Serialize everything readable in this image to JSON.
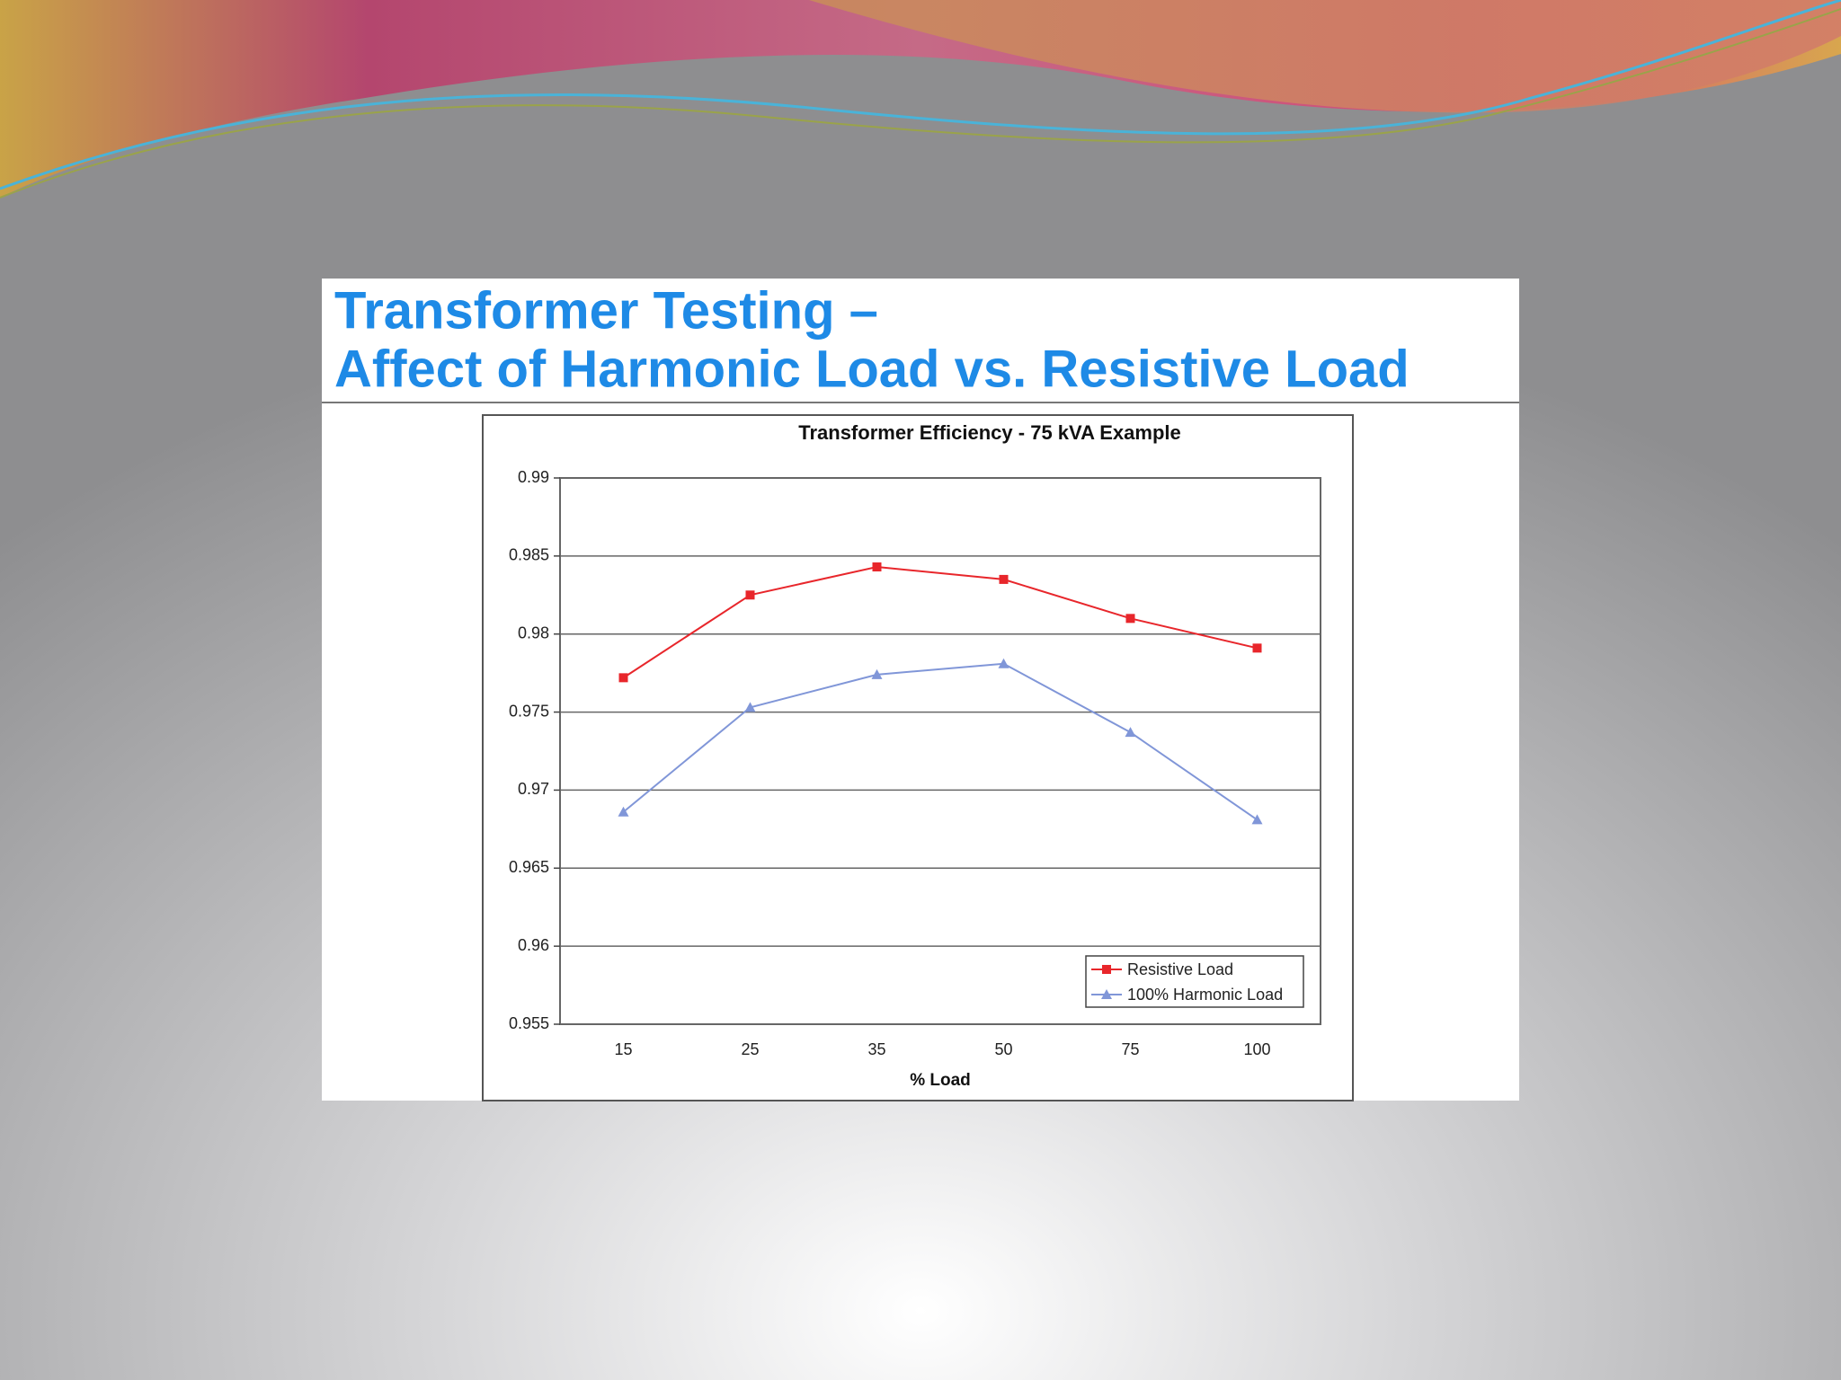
{
  "slide_title": [
    "Transformer Testing –",
    "Affect of Harmonic Load vs. Resistive Load"
  ],
  "chart_data": {
    "type": "line",
    "title": "Transformer Efficiency - 75 kVA Example",
    "x_label": "% Load",
    "categories": [
      "15",
      "25",
      "35",
      "50",
      "75",
      "100"
    ],
    "series": [
      {
        "name": "Resistive Load",
        "color": "#e8262b",
        "marker": "square",
        "values": [
          0.9772,
          0.9825,
          0.9843,
          0.9835,
          0.981,
          0.9791
        ]
      },
      {
        "name": "100% Harmonic Load",
        "color": "#8096d8",
        "marker": "triangle",
        "values": [
          0.9686,
          0.9753,
          0.9774,
          0.9781,
          0.9737,
          0.9681
        ]
      }
    ],
    "ylim": [
      0.955,
      0.99
    ],
    "yticks": [
      0.955,
      0.96,
      0.965,
      0.97,
      0.975,
      0.98,
      0.985,
      0.99
    ],
    "grid": true,
    "legend": "lower right"
  }
}
